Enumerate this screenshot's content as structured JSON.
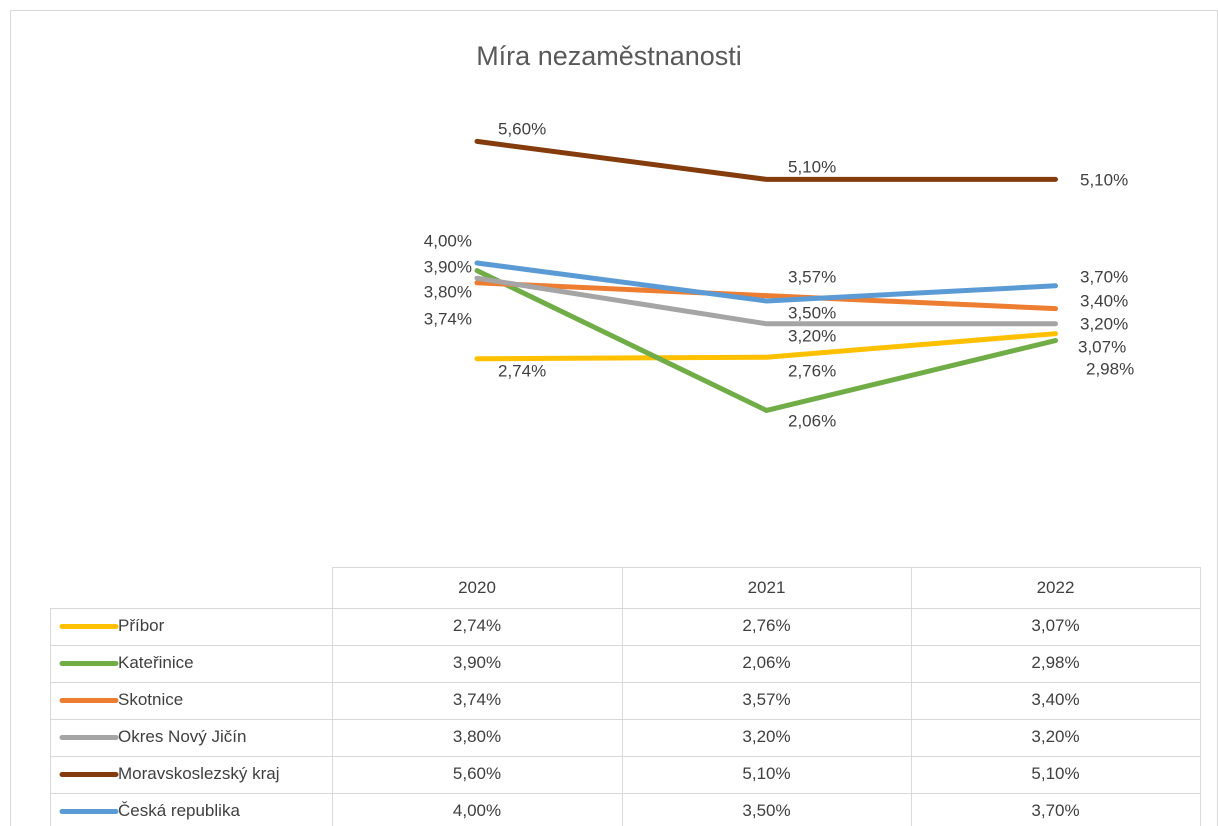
{
  "chart_data": {
    "type": "line",
    "title": "Míra nezaměstnanosti",
    "categories": [
      "2020",
      "2021",
      "2022"
    ],
    "series": [
      {
        "name": "Příbor",
        "color": "#FFC000",
        "values": [
          2.74,
          2.76,
          3.07
        ],
        "value_labels": [
          "2,74%",
          "2,76%",
          "3,07%"
        ]
      },
      {
        "name": "Kateřinice",
        "color": "#70AD47",
        "values": [
          3.9,
          2.06,
          2.98
        ],
        "value_labels": [
          "3,90%",
          "2,06%",
          "2,98%"
        ]
      },
      {
        "name": "Skotnice",
        "color": "#ED7D31",
        "values": [
          3.74,
          3.57,
          3.4
        ],
        "value_labels": [
          "3,74%",
          "3,57%",
          "3,40%"
        ]
      },
      {
        "name": "Okres Nový Jičín",
        "color": "#A5A5A5",
        "values": [
          3.8,
          3.2,
          3.2
        ],
        "value_labels": [
          "3,80%",
          "3,20%",
          "3,20%"
        ]
      },
      {
        "name": "Moravskoslezský kraj",
        "color": "#843C0C",
        "values": [
          5.6,
          5.1,
          5.1
        ],
        "value_labels": [
          "5,60%",
          "5,10%",
          "5,10%"
        ]
      },
      {
        "name": "Česká republika",
        "color": "#5B9BD5",
        "values": [
          4.0,
          3.5,
          3.7
        ],
        "value_labels": [
          "4,00%",
          "3,50%",
          "3,70%"
        ]
      }
    ]
  }
}
